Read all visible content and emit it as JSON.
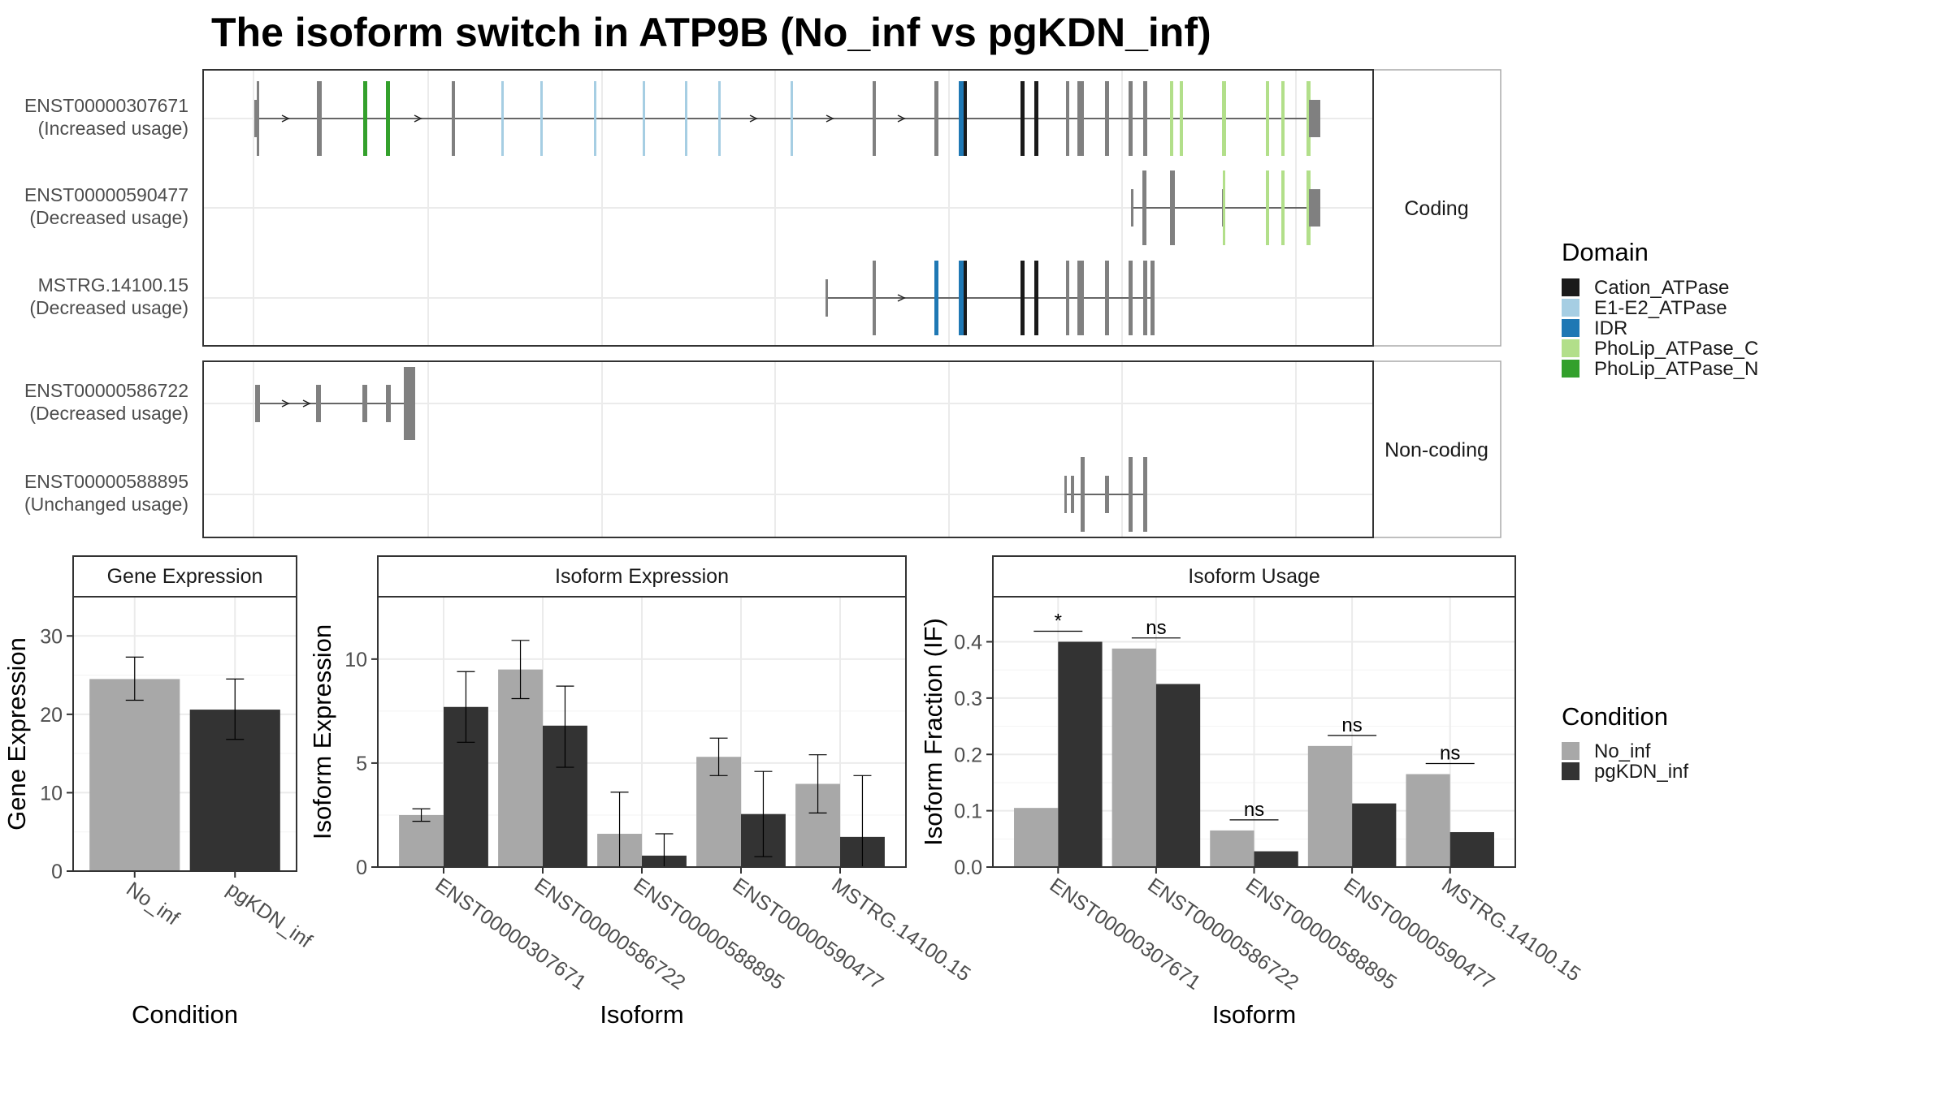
{
  "title": "The isoform switch in ATP9B (No_inf vs pgKDN_inf)",
  "colors": {
    "no_inf": "#A8A8A8",
    "pgkdn_inf": "#333333",
    "utr_exon": "#808080",
    "cation_atpase": "#1A1A1A",
    "e1e2_atpase": "#A6CEE3",
    "idr": "#1F78B4",
    "pholip_c": "#B2DF8A",
    "pholip_n": "#33A02C",
    "panel_border": "#AAAAAA",
    "grid": "#EBEBEB"
  },
  "isoform_structure": {
    "facets": [
      "Coding",
      "Non-coding"
    ],
    "tracks": [
      {
        "id": "ENST00000307671",
        "status": "(Increased usage)",
        "facet": "Coding"
      },
      {
        "id": "ENST00000590477",
        "status": "(Decreased usage)",
        "facet": "Coding"
      },
      {
        "id": "MSTRG.14100.15",
        "status": "(Decreased usage)",
        "facet": "Coding"
      },
      {
        "id": "ENST00000586722",
        "status": "(Decreased usage)",
        "facet": "Non-coding"
      },
      {
        "id": "ENST00000588895",
        "status": "(Unchanged usage)",
        "facet": "Non-coding"
      }
    ]
  },
  "legend_domain": {
    "title": "Domain",
    "items": [
      {
        "label": "Cation_ATPase",
        "color": "#1A1A1A"
      },
      {
        "label": "E1-E2_ATPase",
        "color": "#A6CEE3"
      },
      {
        "label": "IDR",
        "color": "#1F78B4"
      },
      {
        "label": "PhoLip_ATPase_C",
        "color": "#B2DF8A"
      },
      {
        "label": "PhoLip_ATPase_N",
        "color": "#33A02C"
      }
    ]
  },
  "legend_condition": {
    "title": "Condition",
    "items": [
      {
        "label": "No_inf",
        "color": "#A8A8A8"
      },
      {
        "label": "pgKDN_inf",
        "color": "#333333"
      }
    ]
  },
  "chart_data": [
    {
      "type": "bar",
      "strip": "Gene Expression",
      "xlabel": "Condition",
      "ylabel": "Gene Expression",
      "ylim": [
        0,
        35
      ],
      "yticks": [
        0,
        10,
        20,
        30
      ],
      "categories": [
        "No_inf",
        "pgKDN_inf"
      ],
      "values": [
        24.5,
        20.6
      ],
      "err_low": [
        21.8,
        16.8
      ],
      "err_high": [
        27.3,
        24.5
      ]
    },
    {
      "type": "bar",
      "strip": "Isoform Expression",
      "xlabel": "Isoform",
      "ylabel": "Isoform Expression",
      "ylim": [
        0,
        13
      ],
      "yticks": [
        0,
        5,
        10
      ],
      "categories": [
        "ENST00000307671",
        "ENST00000586722",
        "ENST00000588895",
        "ENST00000590477",
        "MSTRG.14100.15"
      ],
      "series": [
        {
          "name": "No_inf",
          "values": [
            2.5,
            9.5,
            1.6,
            5.3,
            4.0
          ],
          "err_low": [
            2.2,
            8.1,
            0.0,
            4.4,
            2.6
          ],
          "err_high": [
            2.8,
            10.9,
            3.6,
            6.2,
            5.4
          ]
        },
        {
          "name": "pgKDN_inf",
          "values": [
            7.7,
            6.8,
            0.55,
            2.55,
            1.45
          ],
          "err_low": [
            6.0,
            4.8,
            0.0,
            0.5,
            0.0
          ],
          "err_high": [
            9.4,
            8.7,
            1.6,
            4.6,
            4.4
          ]
        }
      ]
    },
    {
      "type": "bar",
      "strip": "Isoform Usage",
      "xlabel": "Isoform",
      "ylabel": "Isoform Fraction (IF)",
      "ylim": [
        0,
        0.48
      ],
      "yticks": [
        0.0,
        0.1,
        0.2,
        0.3,
        0.4
      ],
      "categories": [
        "ENST00000307671",
        "ENST00000586722",
        "ENST00000588895",
        "ENST00000590477",
        "MSTRG.14100.15"
      ],
      "series": [
        {
          "name": "No_inf",
          "values": [
            0.105,
            0.388,
            0.065,
            0.215,
            0.165
          ]
        },
        {
          "name": "pgKDN_inf",
          "values": [
            0.4,
            0.325,
            0.028,
            0.113,
            0.062
          ]
        }
      ],
      "significance": [
        "*",
        "ns",
        "ns",
        "ns",
        "ns"
      ]
    }
  ]
}
